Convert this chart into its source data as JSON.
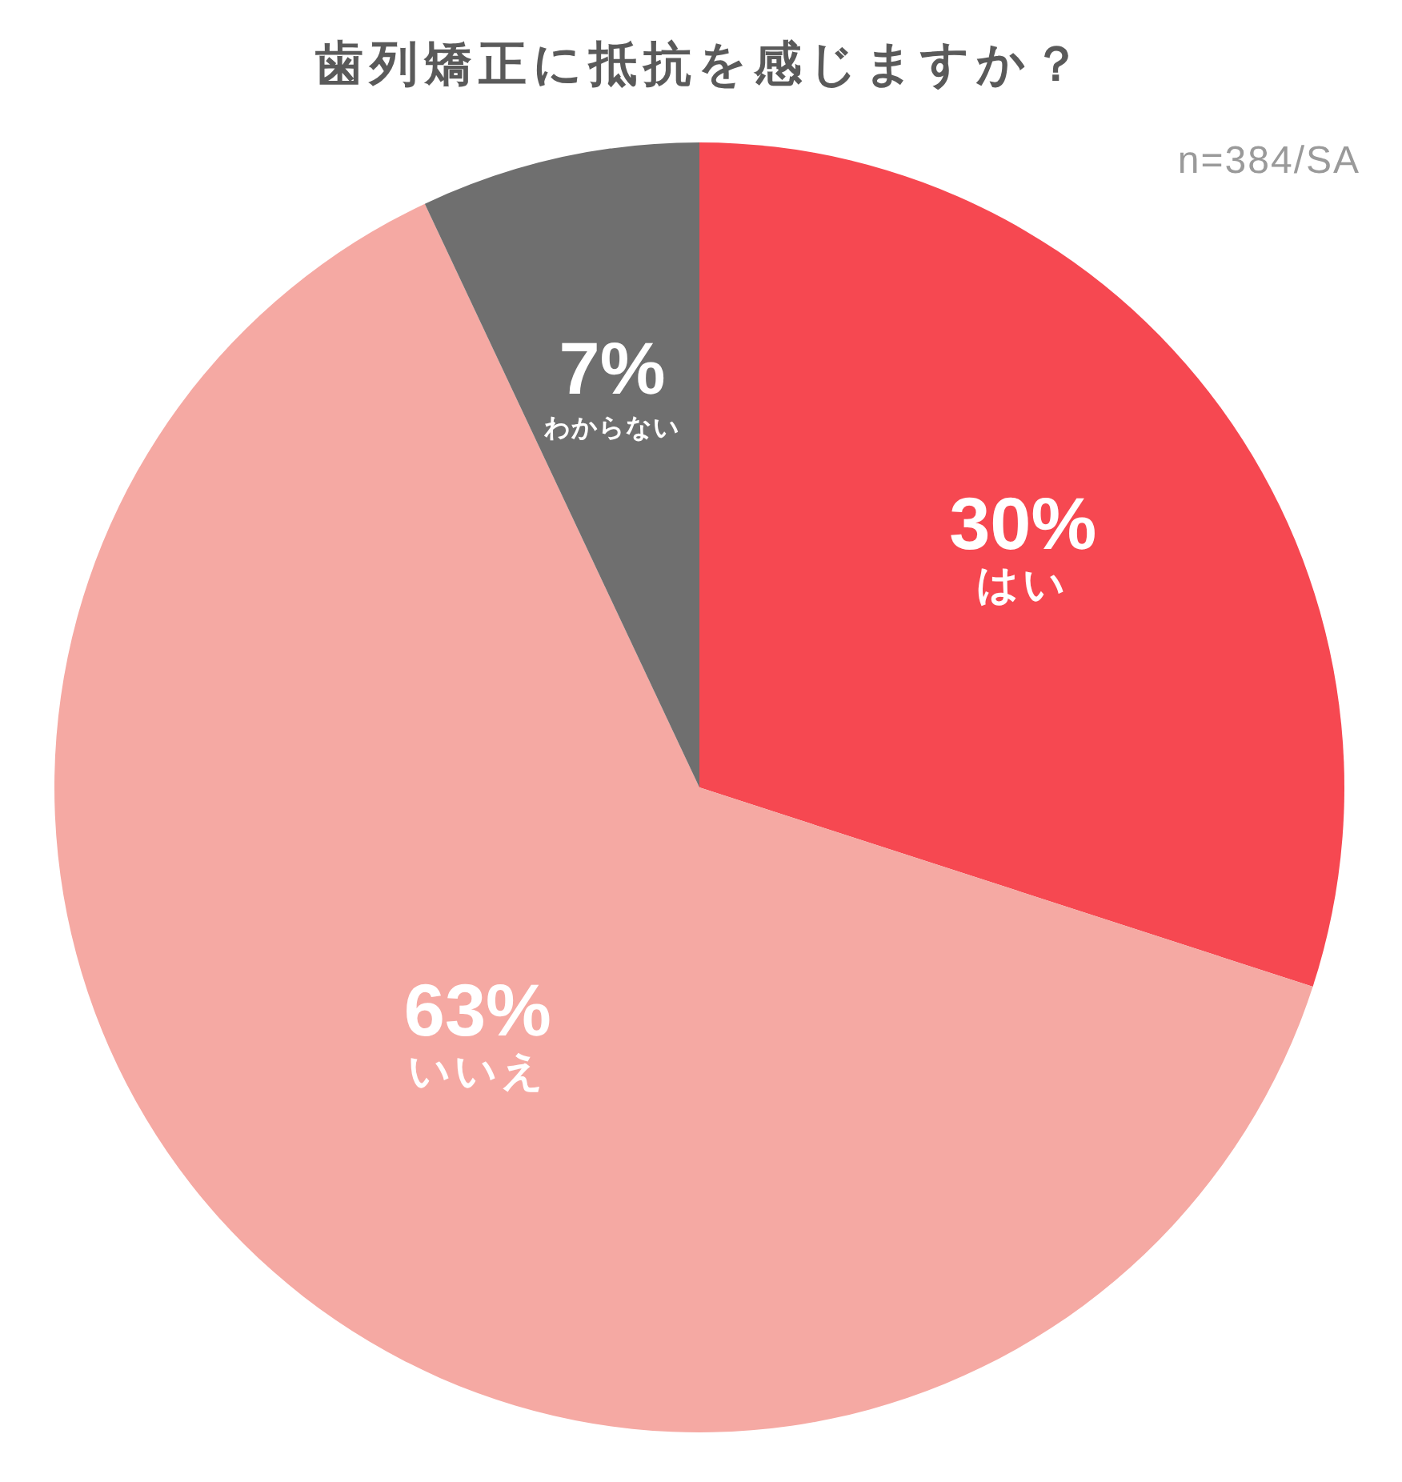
{
  "chart_data": {
    "type": "pie",
    "title": "歯列矯正に抵抗を感じますか？",
    "annotations": [
      "n=384/SA"
    ],
    "categories": [
      "はい",
      "いいえ",
      "わからない"
    ],
    "values": [
      30,
      63,
      7
    ],
    "colors": [
      "#f64851",
      "#f5a9a3",
      "#6f6f6f"
    ],
    "value_labels": [
      "30%",
      "63%",
      "7%"
    ]
  }
}
